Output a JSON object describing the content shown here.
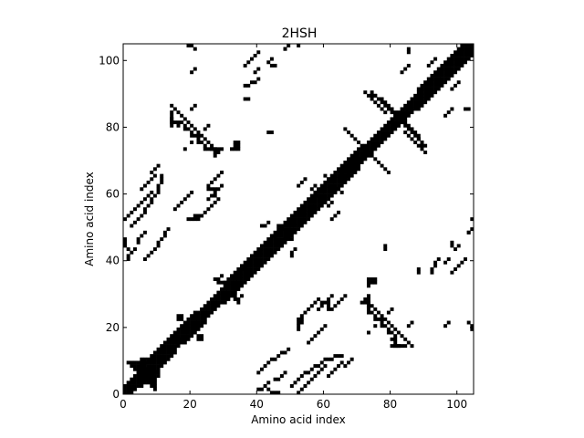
{
  "chart_data": {
    "type": "heatmap",
    "subtype": "protein-contact-map",
    "title": "2HSH",
    "xlabel": "Amino acid index",
    "ylabel": "Amino acid index",
    "xlim": [
      0,
      104
    ],
    "ylim": [
      0,
      104
    ],
    "xticks": [
      0,
      20,
      40,
      60,
      80,
      100
    ],
    "yticks": [
      0,
      20,
      40,
      60,
      80,
      100
    ],
    "grid": false,
    "colors": {
      "contact": "#000000",
      "background": "#ffffff"
    },
    "diagonal_band": {
      "half_width": 2
    },
    "contacts": [
      [
        1,
        9
      ],
      [
        2,
        9
      ],
      [
        3,
        9
      ],
      [
        4,
        9
      ],
      [
        2,
        8
      ],
      [
        3,
        8
      ],
      [
        4,
        8
      ],
      [
        5,
        8
      ],
      [
        3,
        7
      ],
      [
        4,
        7
      ],
      [
        5,
        7
      ],
      [
        6,
        7
      ],
      [
        4,
        6
      ],
      [
        5,
        6
      ],
      [
        5,
        5
      ],
      [
        6,
        5
      ],
      [
        7,
        5
      ],
      [
        8,
        5
      ],
      [
        9,
        5
      ],
      [
        10,
        5
      ],
      [
        9,
        6
      ],
      [
        10,
        6
      ],
      [
        14,
        16
      ],
      [
        15,
        16
      ],
      [
        16,
        16
      ],
      [
        15,
        18
      ],
      [
        16,
        19
      ],
      [
        17,
        20
      ],
      [
        18,
        21
      ],
      [
        19,
        22
      ],
      [
        20,
        23
      ],
      [
        21,
        24
      ],
      [
        16,
        22
      ],
      [
        17,
        22
      ],
      [
        16,
        23
      ],
      [
        17,
        23
      ],
      [
        28,
        33
      ],
      [
        29,
        33
      ],
      [
        30,
        33
      ],
      [
        27,
        34
      ],
      [
        28,
        34
      ],
      [
        29,
        35
      ],
      [
        44,
        47
      ],
      [
        45,
        47
      ],
      [
        46,
        48
      ],
      [
        47,
        49
      ],
      [
        46,
        50
      ],
      [
        73,
        18
      ],
      [
        75,
        20
      ],
      [
        77,
        22
      ],
      [
        79,
        24
      ],
      [
        80,
        25
      ],
      [
        36,
        37
      ],
      [
        37,
        36
      ],
      [
        41,
        50
      ],
      [
        42,
        50
      ],
      [
        43,
        51
      ],
      [
        52,
        62
      ],
      [
        53,
        63
      ],
      [
        54,
        64
      ],
      [
        59,
        57
      ],
      [
        60,
        57
      ],
      [
        61,
        56
      ],
      [
        62,
        57
      ],
      [
        63,
        60
      ],
      [
        64,
        61
      ],
      [
        65,
        60
      ],
      [
        66,
        65
      ],
      [
        67,
        66
      ],
      [
        68,
        67
      ],
      [
        69,
        68
      ],
      [
        70,
        69
      ],
      [
        70,
        70
      ],
      [
        72,
        73
      ],
      [
        73,
        72
      ],
      [
        74,
        71
      ],
      [
        75,
        70
      ],
      [
        76,
        69
      ],
      [
        77,
        68
      ],
      [
        78,
        67
      ],
      [
        79,
        66
      ],
      [
        80,
        81
      ],
      [
        81,
        80
      ],
      [
        82,
        80
      ],
      [
        74,
        89
      ],
      [
        75,
        89
      ],
      [
        76,
        88
      ],
      [
        77,
        88
      ],
      [
        78,
        87
      ],
      [
        79,
        86
      ],
      [
        80,
        85
      ],
      [
        81,
        84
      ],
      [
        82,
        83
      ],
      [
        83,
        81
      ],
      [
        84,
        80
      ],
      [
        85,
        79
      ],
      [
        86,
        78
      ],
      [
        87,
        77
      ],
      [
        88,
        76
      ],
      [
        89,
        75
      ],
      [
        90,
        74
      ],
      [
        84,
        78
      ],
      [
        85,
        77
      ],
      [
        86,
        76
      ],
      [
        87,
        75
      ],
      [
        88,
        74
      ],
      [
        89,
        73
      ],
      [
        90,
        72
      ],
      [
        14,
        81
      ],
      [
        15,
        81
      ],
      [
        16,
        81
      ],
      [
        17,
        81
      ],
      [
        18,
        80
      ],
      [
        19,
        79
      ],
      [
        20,
        78
      ],
      [
        21,
        77
      ],
      [
        22,
        76
      ],
      [
        23,
        75
      ],
      [
        24,
        74
      ],
      [
        25,
        73
      ],
      [
        26,
        73
      ],
      [
        27,
        73
      ],
      [
        14,
        82
      ],
      [
        16,
        80
      ],
      [
        18,
        79
      ],
      [
        20,
        77
      ],
      [
        22,
        75
      ],
      [
        24,
        73
      ],
      [
        28,
        73
      ],
      [
        29,
        73
      ],
      [
        32,
        73
      ],
      [
        33,
        73
      ],
      [
        34,
        73
      ],
      [
        21,
        53
      ],
      [
        22,
        53
      ],
      [
        23,
        53
      ],
      [
        24,
        54
      ],
      [
        25,
        55
      ],
      [
        26,
        56
      ],
      [
        27,
        57
      ],
      [
        28,
        58
      ],
      [
        27,
        59
      ],
      [
        19,
        52
      ],
      [
        20,
        52
      ],
      [
        21,
        52
      ],
      [
        22,
        52
      ],
      [
        0,
        52
      ],
      [
        1,
        53
      ],
      [
        2,
        54
      ],
      [
        3,
        55
      ],
      [
        4,
        56
      ],
      [
        5,
        57
      ],
      [
        6,
        58
      ],
      [
        7,
        59
      ],
      [
        8,
        60
      ],
      [
        0,
        46
      ],
      [
        0,
        45
      ],
      [
        0,
        44
      ],
      [
        1,
        43
      ],
      [
        5,
        61
      ],
      [
        6,
        62
      ],
      [
        7,
        63
      ],
      [
        8,
        64
      ],
      [
        9,
        65
      ],
      [
        25,
        61
      ],
      [
        26,
        61
      ],
      [
        27,
        61
      ],
      [
        36,
        92
      ],
      [
        37,
        92
      ],
      [
        38,
        93
      ],
      [
        39,
        93
      ],
      [
        40,
        94
      ],
      [
        44,
        98
      ],
      [
        45,
        98
      ],
      [
        72,
        28
      ],
      [
        73,
        27
      ],
      [
        74,
        26
      ],
      [
        75,
        25
      ],
      [
        76,
        24
      ],
      [
        77,
        23
      ],
      [
        78,
        22
      ],
      [
        79,
        21
      ],
      [
        80,
        20
      ],
      [
        81,
        19
      ],
      [
        82,
        18
      ],
      [
        83,
        17
      ],
      [
        84,
        16
      ],
      [
        85,
        15
      ],
      [
        86,
        14
      ],
      [
        74,
        34
      ],
      [
        75,
        34
      ],
      [
        74,
        33
      ],
      [
        75,
        33
      ],
      [
        80,
        14
      ],
      [
        81,
        14
      ],
      [
        82,
        14
      ],
      [
        83,
        14
      ],
      [
        84,
        14
      ],
      [
        73,
        26
      ],
      [
        72,
        27
      ],
      [
        71,
        27
      ],
      [
        85,
        20
      ],
      [
        86,
        21
      ],
      [
        40,
        6
      ],
      [
        41,
        7
      ],
      [
        42,
        8
      ],
      [
        43,
        9
      ],
      [
        44,
        10
      ],
      [
        45,
        10
      ],
      [
        46,
        11
      ],
      [
        47,
        12
      ],
      [
        48,
        12
      ],
      [
        49,
        13
      ],
      [
        50,
        2
      ],
      [
        51,
        3
      ],
      [
        52,
        4
      ],
      [
        53,
        5
      ],
      [
        54,
        6
      ],
      [
        55,
        6
      ],
      [
        56,
        7
      ],
      [
        57,
        8
      ],
      [
        58,
        8
      ],
      [
        59,
        9
      ],
      [
        60,
        10
      ],
      [
        61,
        10
      ],
      [
        62,
        10
      ],
      [
        63,
        11
      ],
      [
        64,
        11
      ],
      [
        65,
        11
      ],
      [
        40,
        1
      ],
      [
        41,
        1
      ],
      [
        42,
        2
      ],
      [
        43,
        3
      ],
      [
        45,
        4
      ],
      [
        46,
        4
      ],
      [
        47,
        5
      ],
      [
        48,
        6
      ],
      [
        55,
        15
      ],
      [
        56,
        16
      ],
      [
        57,
        17
      ],
      [
        58,
        18
      ],
      [
        59,
        19
      ],
      [
        60,
        20
      ],
      [
        62,
        25
      ],
      [
        63,
        26
      ],
      [
        64,
        27
      ],
      [
        65,
        28
      ],
      [
        66,
        29
      ],
      [
        66,
        8
      ],
      [
        67,
        9
      ],
      [
        68,
        10
      ],
      [
        58,
        25
      ],
      [
        59,
        26
      ],
      [
        60,
        27
      ],
      [
        61,
        28
      ],
      [
        62,
        29
      ],
      [
        98,
        36
      ],
      [
        99,
        37
      ],
      [
        100,
        38
      ],
      [
        101,
        39
      ],
      [
        102,
        40
      ],
      [
        96,
        39
      ],
      [
        97,
        40
      ],
      [
        99,
        43
      ],
      [
        100,
        44
      ],
      [
        103,
        21
      ],
      [
        104,
        20
      ],
      [
        104,
        19
      ],
      [
        96,
        20
      ],
      [
        97,
        21
      ],
      [
        103,
        48
      ],
      [
        104,
        52
      ],
      [
        96,
        83
      ],
      [
        97,
        84
      ],
      [
        98,
        85
      ],
      [
        98,
        91
      ],
      [
        99,
        92
      ],
      [
        100,
        93
      ],
      [
        102,
        85
      ],
      [
        103,
        85
      ],
      [
        48,
        103
      ],
      [
        49,
        104
      ],
      [
        43,
        78
      ],
      [
        44,
        78
      ],
      [
        36,
        88
      ],
      [
        37,
        88
      ]
    ]
  }
}
